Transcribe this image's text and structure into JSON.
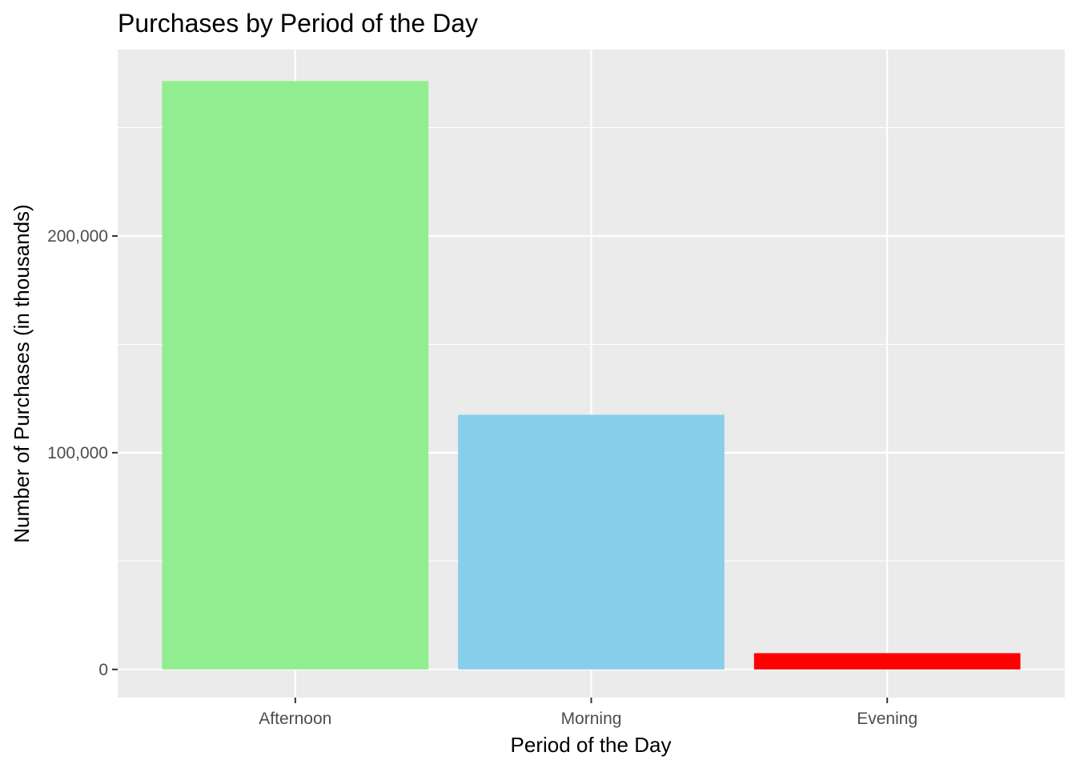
{
  "chart_data": {
    "type": "bar",
    "title": "Purchases by Period of the Day",
    "xlabel": "Period of the Day",
    "ylabel": "Number of Purchases (in thousands)",
    "categories": [
      "Afternoon",
      "Morning",
      "Evening"
    ],
    "values": [
      271500,
      117500,
      7500
    ],
    "colors": [
      "#90EE90",
      "#87CEEB",
      "#FF0000"
    ],
    "ylim": [
      -13000,
      286000
    ],
    "y_major_ticks": [
      0,
      100000,
      200000
    ],
    "y_tick_labels": [
      "0",
      "100,000",
      "200,000"
    ],
    "y_minor_ticks": [
      50000,
      150000,
      250000
    ],
    "grid": true,
    "panel_background": "#EBEBEB",
    "grid_color": "#FFFFFF",
    "legend": "none"
  }
}
